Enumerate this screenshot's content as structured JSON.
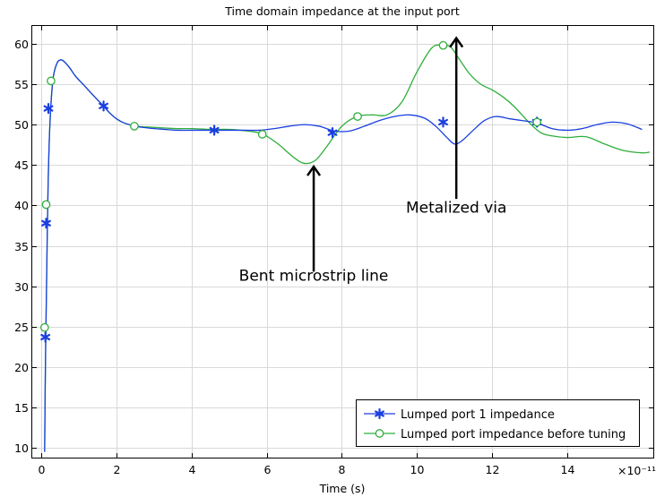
{
  "chart_data": {
    "type": "line",
    "title": "Time domain impedance at the input port",
    "xlabel": "Time (s)",
    "ylabel": "",
    "x_multiplier_label": "×10⁻¹¹",
    "xlim": [
      -0.25,
      16.3
    ],
    "ylim": [
      8.8,
      62.2
    ],
    "x_ticks": [
      0,
      2,
      4,
      6,
      8,
      10,
      12,
      14
    ],
    "y_ticks": [
      10,
      15,
      20,
      25,
      30,
      35,
      40,
      45,
      50,
      55,
      60
    ],
    "grid": true,
    "legend_position": "bottom-right",
    "series": [
      {
        "name": "Lumped port 1 impedance",
        "color": "#1a3fe0",
        "marker": "asterisk",
        "x": [
          0.08,
          0.1,
          0.13,
          0.17,
          0.22,
          0.3,
          0.4,
          0.5,
          0.6,
          0.75,
          0.9,
          1.1,
          1.3,
          1.5,
          1.65,
          1.8,
          2.0,
          2.2,
          2.5,
          2.8,
          3.0,
          3.3,
          3.6,
          4.0,
          4.3,
          4.6,
          5.0,
          5.4,
          5.8,
          6.2,
          6.6,
          7.0,
          7.4,
          7.8,
          8.2,
          8.6,
          9.0,
          9.4,
          9.8,
          10.2,
          10.5,
          10.8,
          11.0,
          11.2,
          11.5,
          11.8,
          12.1,
          12.5,
          12.8,
          13.2,
          13.6,
          14.0,
          14.4,
          14.8,
          15.2,
          15.6,
          16.0
        ],
        "y": [
          9.5,
          20,
          30,
          42,
          50,
          55.5,
          57.5,
          58,
          57.8,
          57,
          56,
          55,
          54,
          53,
          52.3,
          51.5,
          50.7,
          50.2,
          49.8,
          49.6,
          49.5,
          49.4,
          49.3,
          49.3,
          49.3,
          49.3,
          49.3,
          49.3,
          49.3,
          49.5,
          49.8,
          50,
          49.8,
          49.2,
          49.2,
          49.8,
          50.5,
          51,
          51.2,
          50.8,
          49.8,
          48.4,
          47.6,
          48,
          49.3,
          50.5,
          51,
          50.7,
          50.5,
          50.2,
          49.5,
          49.3,
          49.5,
          50,
          50.3,
          50.1,
          49.4
        ],
        "marker_x": [
          0.1,
          0.12,
          0.18,
          1.65,
          4.6,
          7.75,
          10.7,
          13.2
        ],
        "marker_y": [
          23.7,
          37.8,
          52,
          52.3,
          49.3,
          49,
          50.3,
          50.3
        ]
      },
      {
        "name": "Lumped port impedance before tuning",
        "color": "#2fae3c",
        "marker": "circle",
        "x": [
          0.08,
          0.1,
          0.13,
          0.17,
          0.22,
          0.3,
          0.4,
          0.5,
          0.6,
          0.75,
          0.9,
          1.1,
          1.3,
          1.5,
          1.65,
          1.8,
          2.0,
          2.2,
          2.5,
          2.8,
          3.2,
          3.6,
          4.0,
          4.5,
          5.0,
          5.5,
          5.9,
          6.3,
          6.7,
          7.0,
          7.3,
          7.6,
          8.0,
          8.4,
          8.8,
          9.2,
          9.6,
          10.0,
          10.4,
          10.7,
          10.9,
          11.1,
          11.4,
          11.7,
          12.0,
          12.3,
          12.6,
          13.0,
          13.3,
          13.6,
          14.0,
          14.5,
          15.0,
          15.5,
          16.0,
          16.2
        ],
        "y": [
          9.5,
          20,
          30,
          42,
          50,
          55.5,
          57.5,
          58,
          57.8,
          57,
          56,
          55,
          54,
          53,
          52.3,
          51.5,
          50.7,
          50.2,
          49.8,
          49.7,
          49.6,
          49.5,
          49.5,
          49.4,
          49.4,
          49.2,
          48.8,
          47.6,
          46,
          45.2,
          45.6,
          47.3,
          49.8,
          51,
          51.2,
          51.2,
          52.8,
          56.5,
          59.5,
          59.8,
          59.6,
          58.3,
          56.3,
          55,
          54.3,
          53.4,
          52.2,
          50.2,
          49,
          48.6,
          48.4,
          48.5,
          47.6,
          46.8,
          46.5,
          46.6
        ],
        "marker_x": [
          0.08,
          0.12,
          0.25,
          2.47,
          5.88,
          8.42,
          10.7,
          13.2
        ],
        "marker_y": [
          24.9,
          40.1,
          55.4,
          49.8,
          48.8,
          51,
          59.8,
          50.3
        ]
      }
    ],
    "annotations": [
      {
        "text": "Bent microstrip line",
        "x": 7.25,
        "y": 30.7,
        "arrow_from_y": 31.8,
        "arrow_to_y": 44.8,
        "arrow_x": 7.25
      },
      {
        "text": "Metalized via",
        "x": 11.05,
        "y": 39.1,
        "arrow_from_y": 40.8,
        "arrow_to_y": 60.7,
        "arrow_x": 11.05
      }
    ]
  }
}
